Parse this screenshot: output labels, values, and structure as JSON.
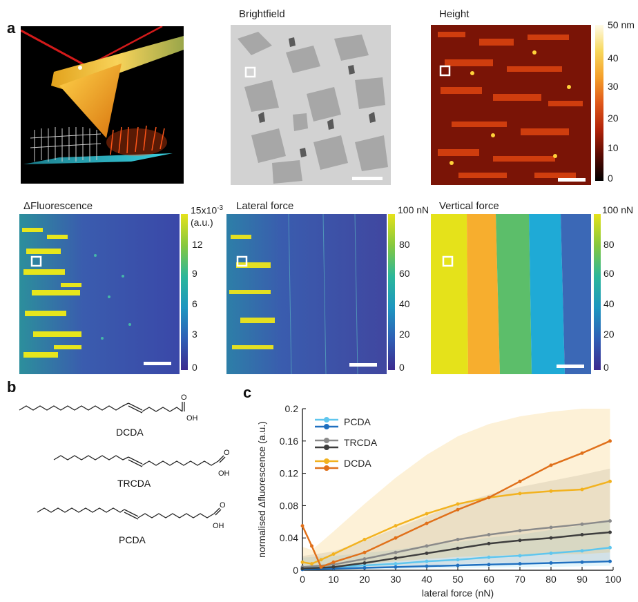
{
  "figure": {
    "panel_a": "a",
    "panel_b": "b",
    "panel_c": "c"
  },
  "images": {
    "brightfield_title": "Brightfield",
    "height_title": "Height",
    "fluorescence_title": "ΔFluorescence",
    "lateral_title": "Lateral force",
    "vertical_title": "Vertical force"
  },
  "colorbars": {
    "height": {
      "unit": "50 nm",
      "ticks": [
        "40",
        "30",
        "20",
        "10",
        "0"
      ]
    },
    "fluorescence": {
      "unit_main": "15x10",
      "unit_exp": "-3",
      "unit_sub": "(a.u.)",
      "ticks": [
        "12",
        "9",
        "6",
        "3",
        "0"
      ]
    },
    "lateral": {
      "unit": "100 nN",
      "ticks": [
        "80",
        "60",
        "40",
        "20",
        "0"
      ]
    },
    "vertical": {
      "unit": "100 nN",
      "ticks": [
        "80",
        "60",
        "40",
        "20",
        "0"
      ]
    }
  },
  "molecules": {
    "m1": "DCDA",
    "m2": "TRCDA",
    "m3": "PCDA",
    "oh": "OH",
    "o": "O"
  },
  "chart_data": {
    "type": "line",
    "xlabel": "lateral force (nN)",
    "ylabel": "normalised Δfluorescence (a.u.)",
    "xlim": [
      0,
      100
    ],
    "ylim": [
      0,
      0.2
    ],
    "xticks": [
      "0",
      "10",
      "20",
      "30",
      "40",
      "50",
      "60",
      "70",
      "80",
      "90",
      "100"
    ],
    "yticks": [
      "0",
      "0.04",
      "0.08",
      "0.12",
      "0.16",
      "0.2"
    ],
    "legend_position": "top-left",
    "grid": false,
    "series": [
      {
        "name": "PCDA",
        "color_light": "#5fc6ee",
        "color_dark": "#1f6fbf",
        "x": [
          0,
          10,
          20,
          30,
          40,
          50,
          60,
          70,
          80,
          90,
          99
        ],
        "y_light": [
          0.003,
          0.004,
          0.006,
          0.008,
          0.011,
          0.013,
          0.016,
          0.018,
          0.021,
          0.024,
          0.028
        ],
        "y_dark": [
          0.001,
          0.002,
          0.003,
          0.004,
          0.005,
          0.006,
          0.007,
          0.008,
          0.009,
          0.01,
          0.011
        ]
      },
      {
        "name": "TRCDA",
        "color_light": "#8a8a8a",
        "color_dark": "#3d3d3d",
        "x": [
          0,
          10,
          20,
          30,
          40,
          50,
          60,
          70,
          80,
          90,
          99
        ],
        "y_light": [
          0.004,
          0.007,
          0.014,
          0.022,
          0.03,
          0.038,
          0.044,
          0.049,
          0.053,
          0.057,
          0.061
        ],
        "y_dark": [
          0.002,
          0.004,
          0.009,
          0.015,
          0.021,
          0.027,
          0.033,
          0.037,
          0.04,
          0.044,
          0.047
        ]
      },
      {
        "name": "DCDA",
        "color_light": "#f2b21f",
        "color_dark": "#e0701a",
        "x": [
          0,
          3,
          6,
          10,
          20,
          30,
          40,
          50,
          60,
          70,
          80,
          90,
          99
        ],
        "y_light": [
          0.01,
          0.008,
          0.013,
          0.02,
          0.038,
          0.055,
          0.07,
          0.082,
          0.09,
          0.095,
          0.098,
          0.1,
          0.11
        ],
        "y_dark": [
          0.055,
          0.03,
          0.004,
          0.01,
          0.022,
          0.04,
          0.058,
          0.075,
          0.09,
          0.11,
          0.13,
          0.145,
          0.16
        ]
      }
    ]
  }
}
